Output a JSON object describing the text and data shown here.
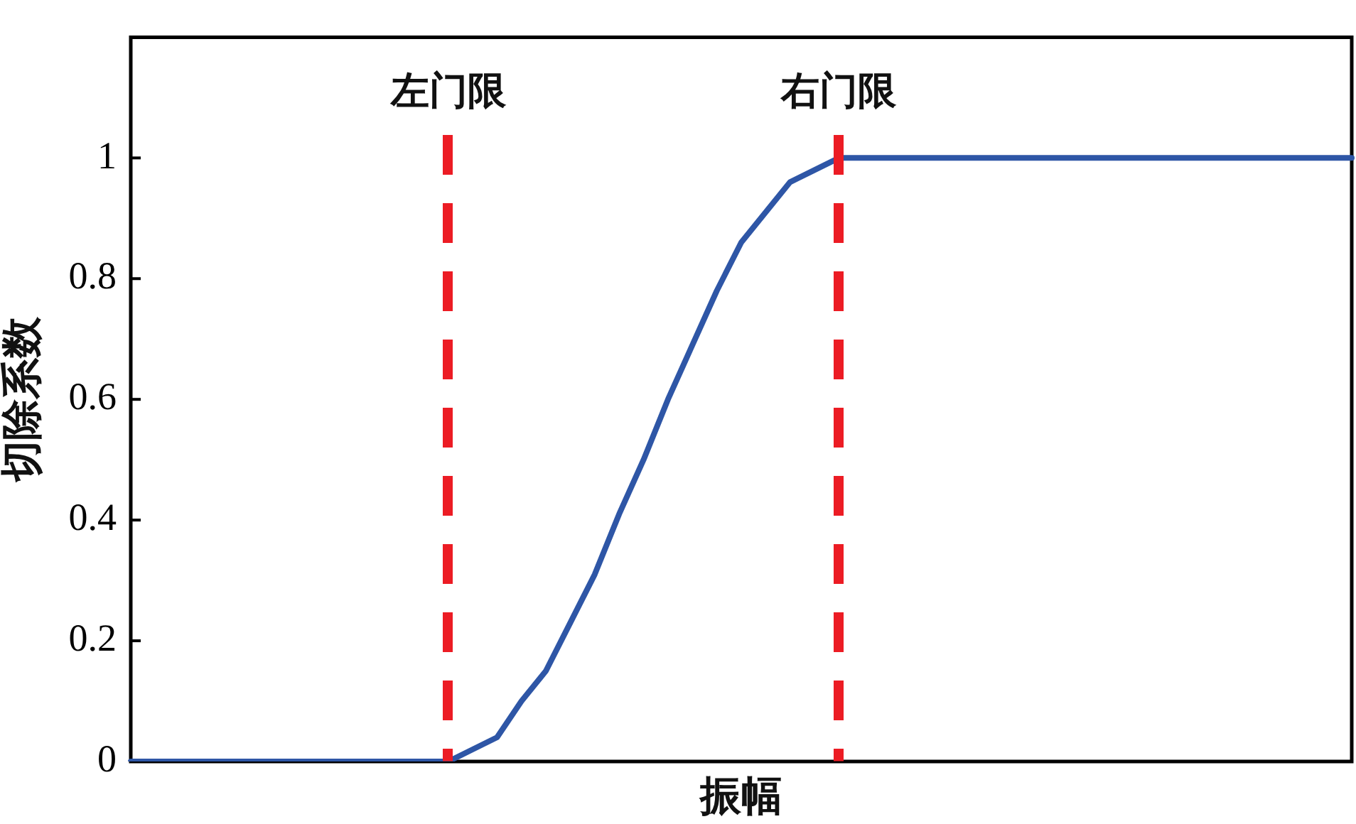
{
  "chart_data": {
    "type": "line",
    "xlabel": "振幅",
    "ylabel": "切除系数",
    "annotations": [
      "左门限",
      "右门限"
    ],
    "categories": [
      null,
      null,
      null,
      null,
      null,
      null,
      null,
      null,
      null,
      null,
      null,
      null,
      null,
      null,
      null,
      null,
      null,
      null,
      null,
      null,
      null,
      null,
      null,
      null,
      null,
      null,
      null,
      null,
      null,
      null,
      null,
      null,
      null,
      null,
      null,
      null,
      null,
      null,
      null,
      null,
      null,
      null,
      null,
      null,
      null,
      null,
      null,
      null,
      null,
      null,
      null
    ],
    "series": [
      {
        "color": "#2e56a6",
        "values": [
          0,
          0,
          0,
          0,
          0,
          0,
          0,
          0,
          0,
          0,
          0,
          0,
          0,
          0,
          0.02,
          0.04,
          0.1,
          0.15,
          0.23,
          0.31,
          0.41,
          0.5,
          0.6,
          0.69,
          0.78,
          0.86,
          0.91,
          0.96,
          0.98,
          1,
          1,
          1,
          1,
          1,
          1,
          1,
          1,
          1,
          1,
          1,
          1,
          1,
          1,
          1,
          1,
          1,
          1,
          1,
          1,
          1,
          1
        ]
      }
    ],
    "ylim": [
      0,
      1.2
    ],
    "yticks": [
      0,
      0.2,
      0.4,
      0.6,
      0.8,
      1
    ],
    "tick_labels": "y",
    "grid": false,
    "legend": false,
    "marker": "none",
    "line_style": "solid"
  }
}
